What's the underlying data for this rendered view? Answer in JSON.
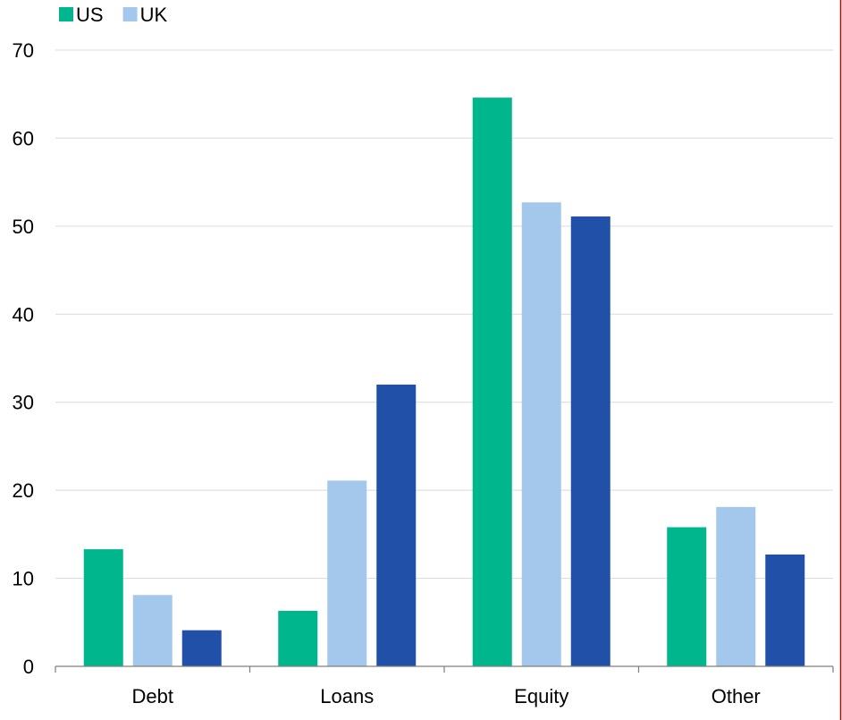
{
  "chart_data": {
    "type": "bar",
    "categories": [
      "Debt",
      "Loans",
      "Equity",
      "Other"
    ],
    "series": [
      {
        "name": "US",
        "color": "#00b68c",
        "values": [
          13.3,
          6.3,
          64.6,
          15.8
        ]
      },
      {
        "name": "UK",
        "color": "#a3c8eb",
        "values": [
          8.1,
          21.1,
          52.7,
          18.1
        ]
      },
      {
        "color": "#2150a9",
        "values": [
          4.1,
          32.0,
          51.1,
          12.7
        ]
      }
    ],
    "ylim": [
      0,
      70
    ],
    "yticks": [
      0,
      10,
      20,
      30,
      40,
      50,
      60,
      70
    ],
    "grid": true,
    "legend": "top-left"
  }
}
